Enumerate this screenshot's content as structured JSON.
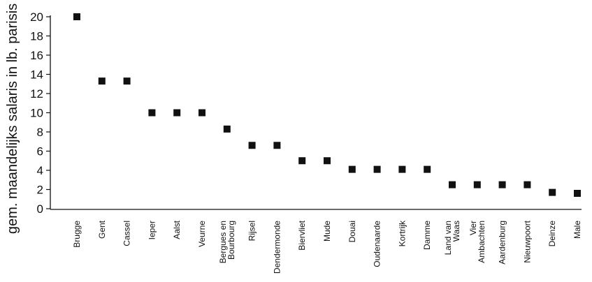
{
  "chart_data": {
    "type": "scatter",
    "ylabel": "gem. maandelijks salaris in lb. parisis",
    "xlabel": "",
    "title": "",
    "ylim": [
      0,
      20
    ],
    "yticks": [
      0,
      2,
      4,
      6,
      8,
      10,
      12,
      14,
      16,
      18,
      20
    ],
    "grid": false,
    "marker": "square",
    "marker_color": "#111111",
    "categories": [
      [
        "Brugge"
      ],
      [
        "Gent"
      ],
      [
        "Cassel"
      ],
      [
        "Ieper"
      ],
      [
        "Aalst"
      ],
      [
        "Veurne"
      ],
      [
        "Bergues en",
        "Bourbourg"
      ],
      [
        "Rijsel"
      ],
      [
        "Dendermonde"
      ],
      [
        "Biervliet"
      ],
      [
        "Mude"
      ],
      [
        "Douai"
      ],
      [
        "Oudenaarde"
      ],
      [
        "Kortrijk"
      ],
      [
        "Damme"
      ],
      [
        "Land van",
        "Waas"
      ],
      [
        "Vier",
        "Ambachten"
      ],
      [
        "Aardenburg"
      ],
      [
        "Nieuwpoort"
      ],
      [
        "Deinze"
      ],
      [
        "Male"
      ]
    ],
    "values": [
      20,
      13.3,
      13.3,
      10,
      10,
      10,
      8.3,
      6.6,
      6.6,
      5,
      5,
      4.1,
      4.1,
      4.1,
      4.1,
      2.5,
      2.5,
      2.5,
      2.5,
      1.7,
      1.6
    ]
  }
}
